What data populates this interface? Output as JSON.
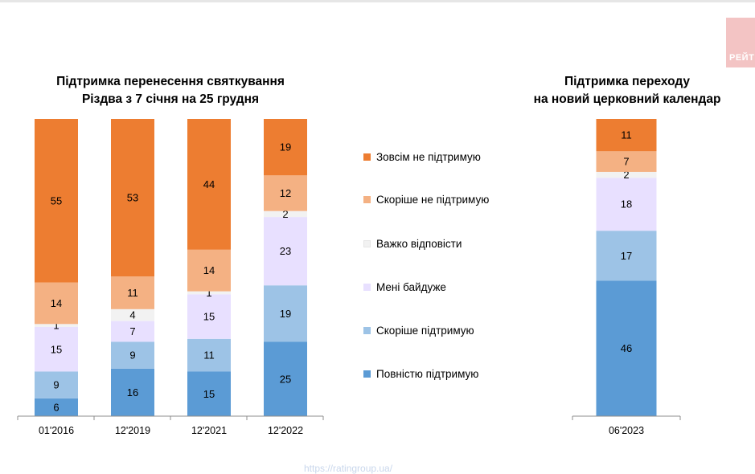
{
  "colors": {
    "full_oppose": "#ed7d31",
    "rather_oppose": "#f4b183",
    "hard_to_say": "#f2f2f2",
    "indifferent": "#e8e0ff",
    "rather_support": "#9dc3e6",
    "full_support": "#5b9bd5"
  },
  "logo_text": "РЕЙТ",
  "watermark": "https://ratingroup.ua/",
  "chart_data": [
    {
      "type": "bar",
      "stacked": true,
      "title": "Підтримка перенесення святкування Різдва з 7 січня на 25 грудня",
      "title_lines": [
        "Підтримка перенесення святкування",
        "Різдва з 7 січня на 25 грудня"
      ],
      "categories": [
        "01'2016",
        "12'2019",
        "12'2021",
        "12'2022"
      ],
      "series": [
        {
          "name": "Повністю підтримую",
          "key": "full_support",
          "values": [
            6,
            16,
            15,
            25
          ]
        },
        {
          "name": "Скоріше  підтримую",
          "key": "rather_support",
          "values": [
            9,
            9,
            11,
            19
          ]
        },
        {
          "name": "Мені байдуже",
          "key": "indifferent",
          "values": [
            15,
            7,
            15,
            23
          ]
        },
        {
          "name": "Важко відповісти",
          "key": "hard_to_say",
          "values": [
            1,
            4,
            1,
            2
          ]
        },
        {
          "name": "Скоріше  не підтримую",
          "key": "rather_oppose",
          "values": [
            14,
            11,
            14,
            12
          ]
        },
        {
          "name": "Зовсім не підтримую",
          "key": "full_oppose",
          "values": [
            55,
            53,
            44,
            19
          ]
        }
      ],
      "ylim": [
        0,
        100
      ]
    },
    {
      "type": "bar",
      "stacked": true,
      "title": "Підтримка переходу на новий церковний календар",
      "title_lines": [
        "Підтримка переходу",
        "на новий церковний календар"
      ],
      "categories": [
        "06'2023"
      ],
      "series": [
        {
          "name": "Повністю підтримую",
          "key": "full_support",
          "values": [
            46
          ]
        },
        {
          "name": "Скоріше  підтримую",
          "key": "rather_support",
          "values": [
            17
          ]
        },
        {
          "name": "Мені байдуже",
          "key": "indifferent",
          "values": [
            18
          ]
        },
        {
          "name": "Важко відповісти",
          "key": "hard_to_say",
          "values": [
            2
          ]
        },
        {
          "name": "Скоріше  не підтримую",
          "key": "rather_oppose",
          "values": [
            7
          ]
        },
        {
          "name": "Зовсім не підтримую",
          "key": "full_oppose",
          "values": [
            11
          ]
        }
      ],
      "ylim": [
        0,
        101
      ]
    }
  ],
  "legend": [
    {
      "label": "Зовсім не підтримую",
      "key": "full_oppose"
    },
    {
      "label": "Скоріше  не підтримую",
      "key": "rather_oppose"
    },
    {
      "label": "Важко відповісти",
      "key": "hard_to_say"
    },
    {
      "label": "Мені байдуже",
      "key": "indifferent"
    },
    {
      "label": "Скоріше  підтримую",
      "key": "rather_support"
    },
    {
      "label": "Повністю підтримую",
      "key": "full_support"
    }
  ]
}
